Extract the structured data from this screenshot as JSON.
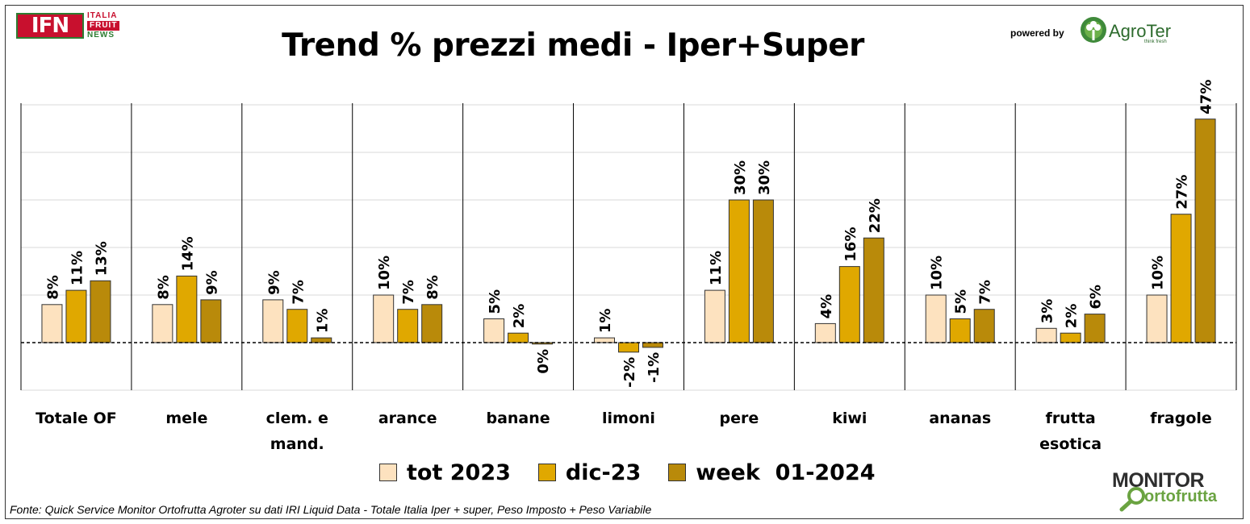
{
  "header": {
    "title": "Trend % prezzi medi - Iper+Super",
    "ifn_logo": {
      "mark": "IFN",
      "line1": "ITALIA",
      "line2": "FRUIT",
      "line3": "NEWS"
    },
    "powered_by": "powered by",
    "agroter_logo": {
      "name": "AgroTer",
      "tagline": "think fresh"
    }
  },
  "footer": {
    "source": "Fonte: Quick Service Monitor Ortofrutta Agroter su dati IRI Liquid Data - Totale Italia Iper + super, Peso Imposto + Peso Variabile",
    "monitor_logo": {
      "line1": "MONITOR",
      "line2": "ortofrutta"
    }
  },
  "colors": {
    "tot_2023": "#fde2bf",
    "dic_23": "#e0a800",
    "week_01_2024": "#b98a0a",
    "bar_border": "#333333",
    "grid": "#d9d9d9"
  },
  "chart_data": {
    "type": "bar",
    "title": "Trend % prezzi medi - Iper+Super",
    "categories": [
      [
        "Totale OF"
      ],
      [
        "mele"
      ],
      [
        "clem. e",
        "mand."
      ],
      [
        "arance"
      ],
      [
        "banane"
      ],
      [
        "limoni"
      ],
      [
        "pere"
      ],
      [
        "kiwi"
      ],
      [
        "ananas"
      ],
      [
        "frutta",
        "esotica"
      ],
      [
        "fragole"
      ]
    ],
    "series": [
      {
        "name": "tot 2023",
        "values": [
          0.08,
          0.08,
          0.09,
          0.1,
          0.05,
          0.01,
          0.11,
          0.04,
          0.1,
          0.03,
          0.1
        ],
        "labels": [
          "8%",
          "8%",
          "9%",
          "10%",
          "5%",
          "1%",
          "11%",
          "4%",
          "10%",
          "3%",
          "10%"
        ]
      },
      {
        "name": "dic-23",
        "values": [
          0.11,
          0.14,
          0.07,
          0.07,
          0.02,
          -0.02,
          0.3,
          0.16,
          0.05,
          0.02,
          0.27
        ],
        "labels": [
          "11%",
          "14%",
          "7%",
          "7%",
          "2%",
          "-2%",
          "30%",
          "16%",
          "5%",
          "2%",
          "27%"
        ]
      },
      {
        "name": "week  01-2024",
        "values": [
          0.13,
          0.09,
          0.01,
          0.08,
          -0.003,
          -0.01,
          0.3,
          0.22,
          0.07,
          0.06,
          0.47
        ],
        "labels": [
          "13%",
          "9%",
          "1%",
          "8%",
          "0%",
          "-1%",
          "30%",
          "22%",
          "7%",
          "6%",
          "47%"
        ]
      }
    ],
    "ylim": [
      -0.1,
      0.5
    ],
    "grid": true,
    "legend_position": "bottom",
    "zero_line": "dashed"
  }
}
